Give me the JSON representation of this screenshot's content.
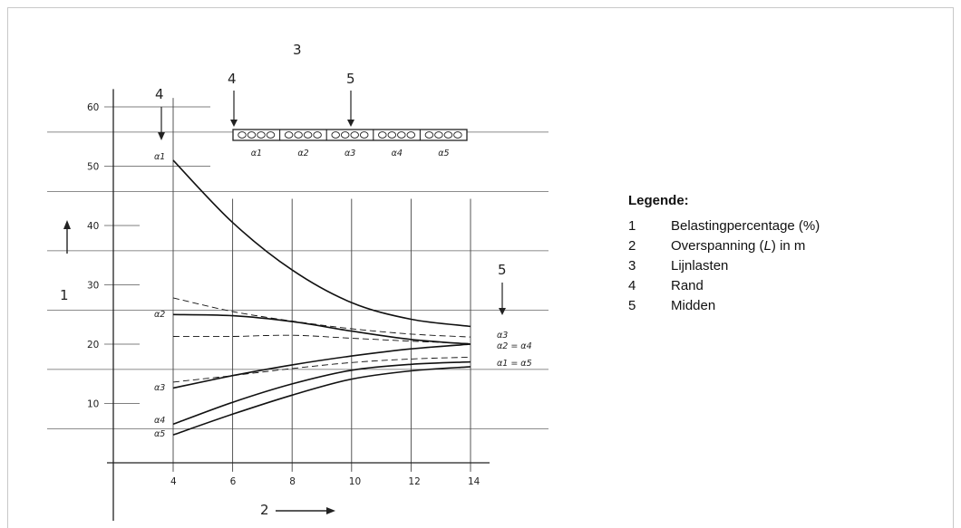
{
  "legend": {
    "title": "Legende:",
    "items": [
      {
        "number": "1",
        "text": "Belastingpercentage (%)"
      },
      {
        "number": "2",
        "text_before": "Overspanning (",
        "text_italic": "L",
        "text_after": ") in m"
      },
      {
        "number": "3",
        "text": "Lijnlasten"
      },
      {
        "number": "4",
        "text": "Rand"
      },
      {
        "number": "5",
        "text": "Midden"
      }
    ]
  },
  "figure": {
    "ylabel_number": "1",
    "xlabel_number": "2",
    "slab_label_number": "3",
    "edge_marker_number": "4",
    "middle_marker_number": "5",
    "slab_elements": [
      "α1",
      "α2",
      "α3",
      "α4",
      "α5"
    ],
    "start_labels": [
      "α1",
      "α2",
      "α3",
      "α4",
      "α5"
    ],
    "end_labels": [
      "α3",
      "α2 = α4",
      "α1 = α5"
    ]
  },
  "chart_data": {
    "type": "line",
    "xlabel": "2",
    "ylabel": "1",
    "xlim": [
      2,
      15
    ],
    "ylim": [
      -1,
      63
    ],
    "x_ticks": [
      4,
      6,
      8,
      10,
      12,
      14
    ],
    "y_ticks": [
      10,
      20,
      30,
      40,
      50,
      60
    ],
    "grid": true,
    "series": [
      {
        "name": "α1",
        "style": "solid",
        "x": [
          4,
          6,
          8,
          10,
          12,
          14
        ],
        "values": [
          51,
          40.5,
          32.5,
          27,
          24.2,
          23
        ]
      },
      {
        "name": "α2",
        "style": "solid",
        "x": [
          4,
          6,
          8,
          10,
          12,
          14
        ],
        "values": [
          25,
          24.8,
          23.8,
          22.2,
          20.8,
          20
        ]
      },
      {
        "name": "α3",
        "style": "solid",
        "x": [
          4,
          6,
          8,
          10,
          12,
          14
        ],
        "values": [
          12.6,
          14.7,
          16.5,
          18,
          19.2,
          20
        ]
      },
      {
        "name": "α4",
        "style": "solid",
        "x": [
          4,
          6,
          8,
          10,
          12,
          14
        ],
        "values": [
          6.5,
          10.2,
          13.3,
          15.6,
          16.6,
          17
        ]
      },
      {
        "name": "α5",
        "style": "solid",
        "x": [
          4,
          6,
          8,
          10,
          12,
          14
        ],
        "values": [
          4.7,
          8.2,
          11.4,
          14.1,
          15.5,
          16.2
        ]
      },
      {
        "name": "",
        "style": "dashed",
        "x": [
          4,
          6,
          8,
          10,
          12,
          14
        ],
        "values": [
          27.8,
          25.5,
          23.9,
          22.6,
          21.7,
          21.2
        ]
      },
      {
        "name": "",
        "style": "dashed",
        "x": [
          4,
          6,
          8,
          10,
          12,
          14
        ],
        "values": [
          21.3,
          21.3,
          21.5,
          21,
          20.5,
          20.1
        ]
      },
      {
        "name": "",
        "style": "dashed",
        "x": [
          4,
          6,
          8,
          10,
          12,
          14
        ],
        "values": [
          13.6,
          14.7,
          15.9,
          16.9,
          17.5,
          17.8
        ]
      }
    ]
  }
}
